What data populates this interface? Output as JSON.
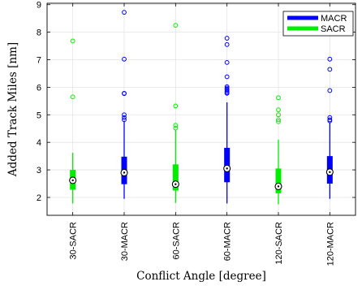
{
  "chart_data": {
    "type": "boxplot",
    "xlabel": "Conflict Angle [degree]",
    "ylabel": "Added Track Miles [nm]",
    "ylim": [
      1.35,
      9.05
    ],
    "yticks": [
      2,
      3,
      4,
      5,
      6,
      7,
      8,
      9
    ],
    "grid": true,
    "legend_position": "top-right",
    "series": [
      {
        "name": "MACR",
        "color": "#0000ff"
      },
      {
        "name": "SACR",
        "color": "#00ee00"
      }
    ],
    "categories": [
      "30-SACR",
      "30-MACR",
      "60-SACR",
      "60-MACR",
      "120-SACR",
      "120-MACR"
    ],
    "boxes": [
      {
        "category": "30-SACR",
        "series": "SACR",
        "whisker_low": 1.78,
        "q1": 2.28,
        "median": 2.62,
        "q3": 3.0,
        "whisker_high": 3.62,
        "outliers": [
          5.65,
          7.68
        ]
      },
      {
        "category": "30-MACR",
        "series": "MACR",
        "whisker_low": 1.95,
        "q1": 2.48,
        "median": 2.9,
        "q3": 3.48,
        "whisker_high": 4.78,
        "outliers": [
          4.82,
          4.9,
          5.0,
          5.77,
          5.78,
          7.02,
          8.72
        ]
      },
      {
        "category": "60-SACR",
        "series": "SACR",
        "whisker_low": 1.8,
        "q1": 2.25,
        "median": 2.48,
        "q3": 3.2,
        "whisker_high": 4.45,
        "outliers": [
          4.52,
          4.62,
          5.32,
          8.25
        ]
      },
      {
        "category": "60-MACR",
        "series": "MACR",
        "whisker_low": 1.78,
        "q1": 2.55,
        "median": 3.05,
        "q3": 3.8,
        "whisker_high": 5.45,
        "outliers": [
          5.78,
          5.8,
          5.85,
          5.9,
          5.93,
          5.97,
          6.02,
          6.38,
          6.9,
          7.55,
          7.78
        ]
      },
      {
        "category": "120-SACR",
        "series": "SACR",
        "whisker_low": 1.75,
        "q1": 2.15,
        "median": 2.4,
        "q3": 3.05,
        "whisker_high": 4.1,
        "outliers": [
          4.75,
          4.82,
          5.0,
          5.18,
          5.62
        ]
      },
      {
        "category": "120-MACR",
        "series": "MACR",
        "whisker_low": 1.95,
        "q1": 2.5,
        "median": 2.92,
        "q3": 3.5,
        "whisker_high": 4.72,
        "outliers": [
          4.78,
          4.82,
          4.9,
          5.88,
          6.65,
          7.02
        ]
      }
    ]
  }
}
